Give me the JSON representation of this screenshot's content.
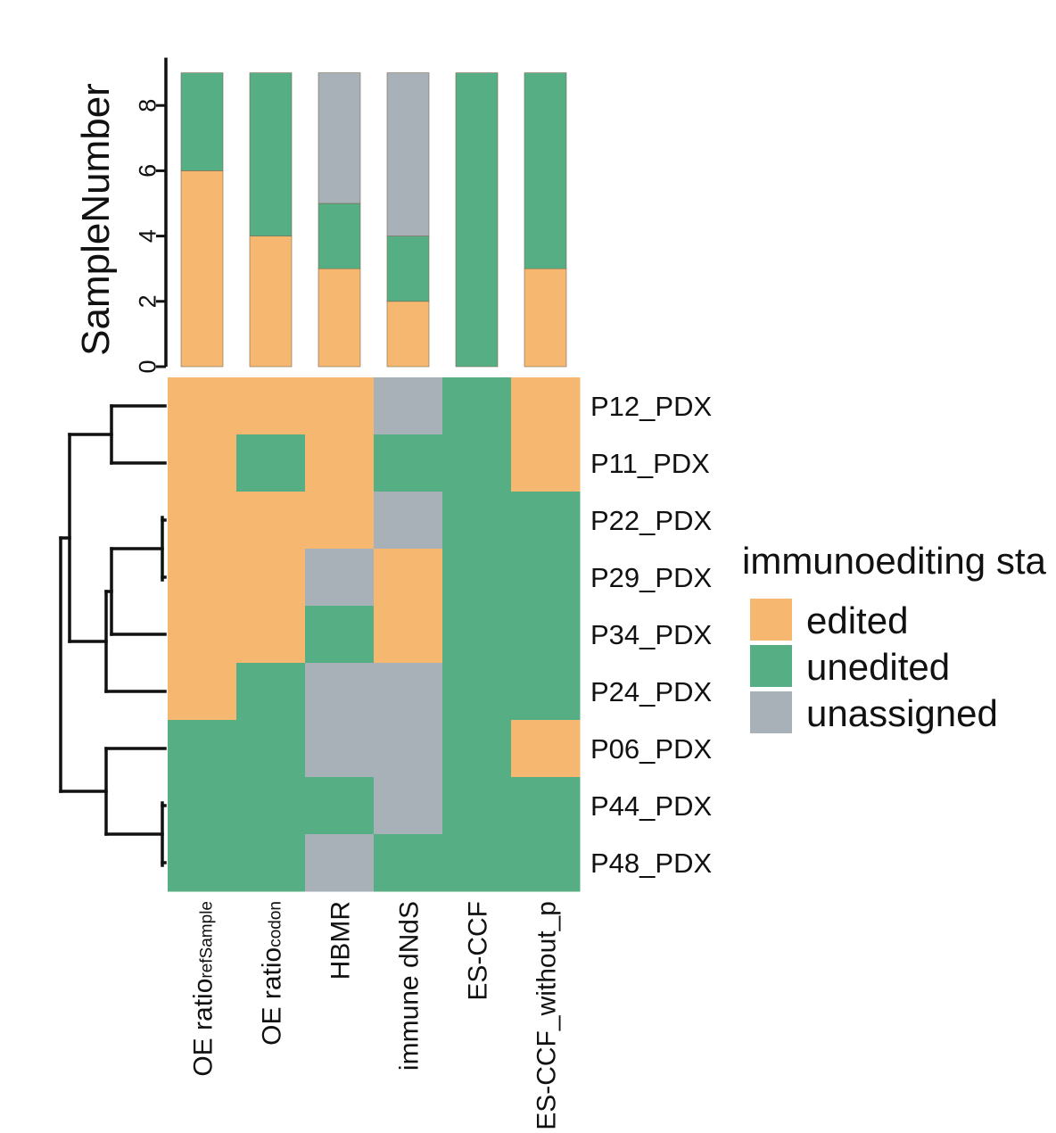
{
  "chart_data": [
    {
      "type": "bar",
      "stacked": true,
      "ylabel": "SampleNumber",
      "ylim": [
        0,
        9
      ],
      "yticks": [
        "0",
        "2",
        "4",
        "6",
        "8"
      ],
      "categories": [
        "OE ratio refSample",
        "OE ratio codon",
        "HBMR",
        "immune dNdS",
        "ES-CCF",
        "ES-CCF_without_p"
      ],
      "series": [
        {
          "name": "edited",
          "values": [
            6,
            4,
            3,
            2,
            0,
            3
          ]
        },
        {
          "name": "unedited",
          "values": [
            3,
            5,
            2,
            2,
            9,
            6
          ]
        },
        {
          "name": "unassigned",
          "values": [
            0,
            0,
            4,
            5,
            0,
            0
          ]
        }
      ]
    },
    {
      "type": "heatmap",
      "rows": [
        "P12_PDX",
        "P11_PDX",
        "P22_PDX",
        "P29_PDX",
        "P34_PDX",
        "P24_PDX",
        "P06_PDX",
        "P44_PDX",
        "P48_PDX"
      ],
      "columns": [
        {
          "main": "OE ratio",
          "sub": "refSample"
        },
        {
          "main": "OE ratio",
          "sub": "codon"
        },
        {
          "main": "HBMR",
          "sub": ""
        },
        {
          "main": "immune dNdS",
          "sub": ""
        },
        {
          "main": "ES-CCF",
          "sub": ""
        },
        {
          "main": "ES-CCF_without_p",
          "sub": ""
        }
      ],
      "values": [
        [
          "edited",
          "edited",
          "edited",
          "unassigned",
          "unedited",
          "edited"
        ],
        [
          "edited",
          "unedited",
          "edited",
          "unedited",
          "unedited",
          "edited"
        ],
        [
          "edited",
          "edited",
          "edited",
          "unassigned",
          "unedited",
          "unedited"
        ],
        [
          "edited",
          "edited",
          "unassigned",
          "edited",
          "unedited",
          "unedited"
        ],
        [
          "edited",
          "edited",
          "unedited",
          "edited",
          "unedited",
          "unedited"
        ],
        [
          "edited",
          "unedited",
          "unassigned",
          "unassigned",
          "unedited",
          "unedited"
        ],
        [
          "unedited",
          "unedited",
          "unassigned",
          "unassigned",
          "unedited",
          "edited"
        ],
        [
          "unedited",
          "unedited",
          "unedited",
          "unassigned",
          "unedited",
          "unedited"
        ],
        [
          "unedited",
          "unedited",
          "unassigned",
          "unedited",
          "unedited",
          "unedited"
        ]
      ],
      "dendrogram": "rows"
    }
  ],
  "legend": {
    "title": "immunoediting sta",
    "placement": "right",
    "items": [
      {
        "label": "edited",
        "color": "#F6B870"
      },
      {
        "label": "unedited",
        "color": "#56AE84"
      },
      {
        "label": "unassigned",
        "color": "#A9B1B8"
      }
    ]
  }
}
